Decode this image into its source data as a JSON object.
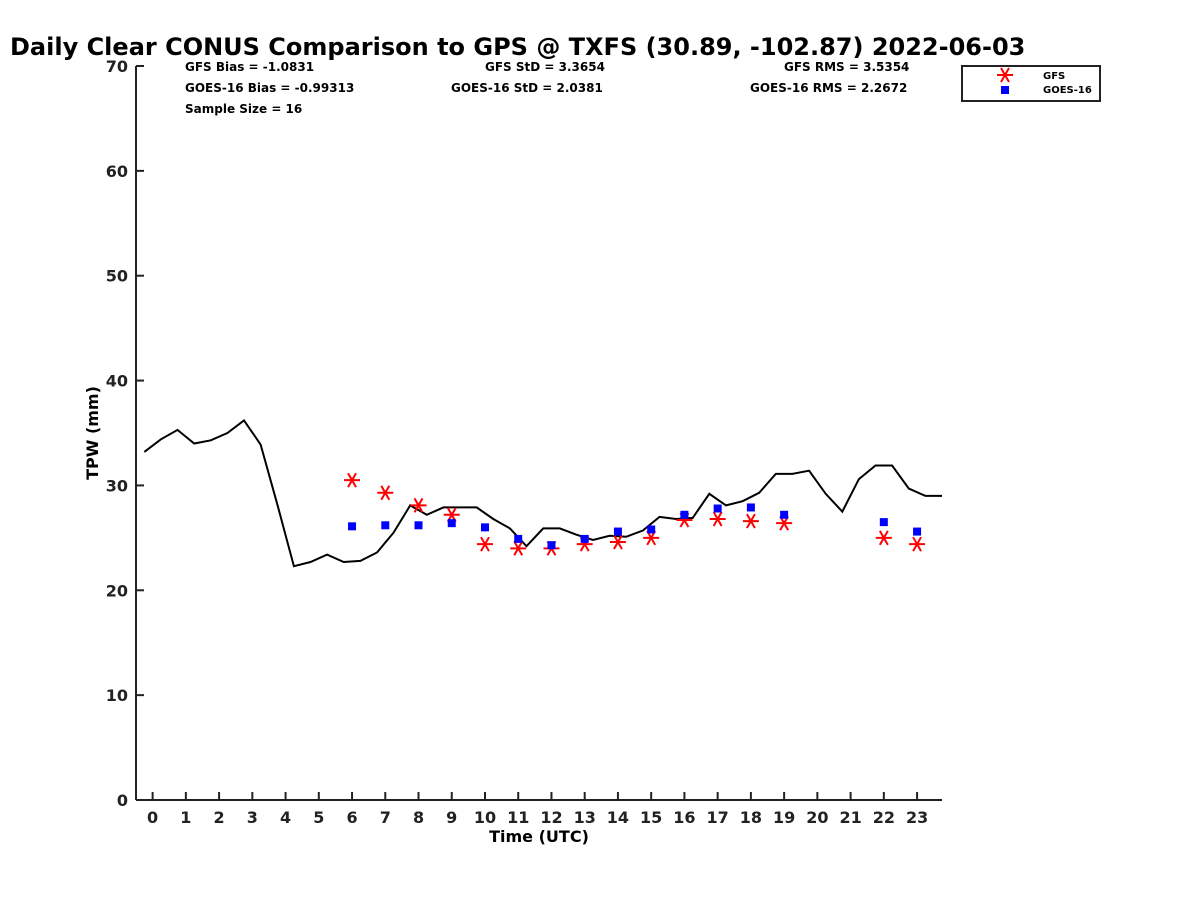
{
  "chart_data": {
    "type": "line",
    "title": "Daily Clear CONUS Comparison to GPS @ TXFS (30.89, -102.87) 2022-06-03",
    "xlabel": "Time (UTC)",
    "ylabel": "TPW (mm)",
    "xlim": [
      -0.5,
      23.75
    ],
    "ylim": [
      0,
      70
    ],
    "xticks": [
      0,
      1,
      2,
      3,
      4,
      5,
      6,
      7,
      8,
      9,
      10,
      11,
      12,
      13,
      14,
      15,
      16,
      17,
      18,
      19,
      20,
      21,
      22,
      23
    ],
    "yticks": [
      0,
      10,
      20,
      30,
      40,
      50,
      60,
      70
    ],
    "grid": false,
    "legend_position": "top-right",
    "stats": {
      "gfs_bias": "GFS Bias = -1.0831",
      "goes_bias": "GOES-16 Bias = -0.99313",
      "sample_size": "Sample Size = 16",
      "gfs_std": "GFS StD = 3.3654",
      "goes_std": "GOES-16 StD = 2.0381",
      "gfs_rms": "GFS RMS = 3.5354",
      "goes_rms": "GOES-16 RMS = 2.2672"
    },
    "series": [
      {
        "name": "",
        "kind": "line",
        "color": "#000000",
        "x": [
          -0.25,
          0.25,
          0.75,
          1.25,
          1.75,
          2.25,
          2.75,
          3.25,
          3.75,
          4.25,
          4.75,
          5.25,
          5.75,
          6.25,
          6.75,
          7.25,
          7.75,
          8.25,
          8.75,
          9.25,
          9.75,
          10.25,
          10.75,
          11.25,
          11.75,
          12.25,
          12.75,
          13.25,
          13.75,
          14.25,
          14.75,
          15.25,
          15.75,
          16.25,
          16.75,
          17.25,
          17.75,
          18.25,
          18.75,
          19.25,
          19.75,
          20.25,
          20.75,
          21.25,
          21.75,
          22.25,
          22.75,
          23.25,
          23.75
        ],
        "y": [
          33.2,
          34.4,
          35.3,
          34.0,
          34.3,
          35.0,
          36.2,
          33.9,
          28.2,
          22.3,
          22.7,
          23.4,
          22.7,
          22.8,
          23.6,
          25.5,
          28.1,
          27.2,
          27.9,
          27.9,
          27.9,
          26.8,
          25.9,
          24.2,
          25.9,
          25.9,
          25.3,
          24.8,
          25.2,
          25.1,
          25.7,
          27.0,
          26.8,
          26.9,
          29.2,
          28.1,
          28.5,
          29.3,
          31.1,
          31.1,
          31.4,
          29.2,
          27.5,
          30.6,
          31.9,
          31.9,
          29.7,
          29.0,
          29.0
        ]
      },
      {
        "name": "GFS",
        "kind": "asterisk",
        "color": "#ff0000",
        "x": [
          6,
          7,
          8,
          9,
          10,
          11,
          12,
          13,
          14,
          15,
          16,
          17,
          18,
          19,
          22,
          23
        ],
        "y": [
          30.5,
          29.3,
          28.1,
          27.2,
          24.4,
          24.0,
          24.0,
          24.4,
          24.6,
          25.0,
          26.7,
          26.8,
          26.6,
          26.4,
          25.0,
          24.4
        ]
      },
      {
        "name": "GOES-16",
        "kind": "square",
        "color": "#0000ff",
        "x": [
          6,
          7,
          8,
          9,
          10,
          11,
          12,
          13,
          14,
          15,
          16,
          17,
          18,
          19,
          22,
          23
        ],
        "y": [
          26.1,
          26.2,
          26.2,
          26.4,
          26.0,
          24.9,
          24.3,
          24.9,
          25.6,
          25.8,
          27.2,
          27.8,
          27.9,
          27.2,
          26.5,
          25.6
        ]
      }
    ]
  }
}
